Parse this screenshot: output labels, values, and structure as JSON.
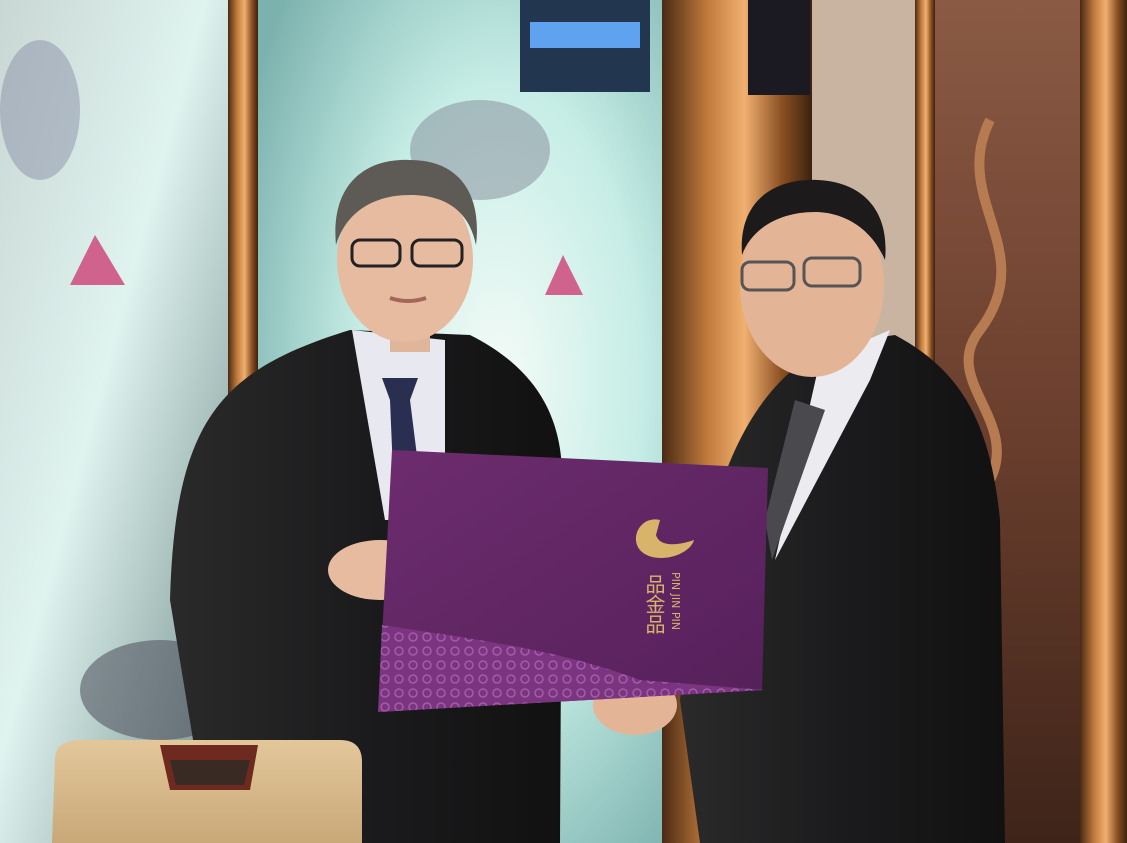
{
  "bag": {
    "brand_latin": "PIN JIN PIN",
    "brand_chinese": "品金品"
  }
}
